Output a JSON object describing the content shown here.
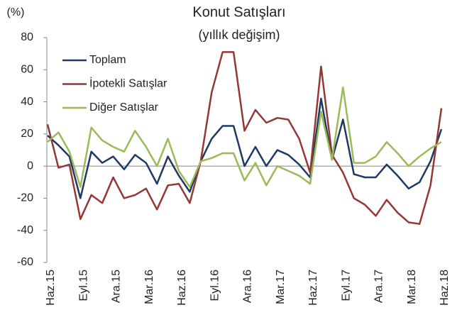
{
  "chart_data": {
    "type": "line",
    "title": "Konut Satışları",
    "subtitle": "(yıllık değişim)",
    "y_label": "(%)",
    "categories": [
      "Haz.15",
      null,
      null,
      "Eyl.15",
      null,
      null,
      "Ara.15",
      null,
      null,
      "Mar.16",
      null,
      null,
      "Haz.16",
      null,
      null,
      "Eyl.16",
      null,
      null,
      "Ara.16",
      null,
      null,
      "Mar.17",
      null,
      null,
      "Haz.17",
      null,
      null,
      "Eyl.17",
      null,
      null,
      "Ara.17",
      null,
      null,
      "Mar.18",
      null,
      null,
      "Haz.18"
    ],
    "series": [
      {
        "name": "Toplam",
        "color": "#1f3864",
        "values": [
          19,
          13,
          6,
          -20,
          9,
          2,
          6,
          -2,
          7,
          2,
          -11,
          6,
          -6,
          -16,
          3,
          17,
          25,
          25,
          0,
          12,
          0,
          10,
          7,
          1,
          -7,
          42,
          4,
          29,
          -5,
          -7,
          -7,
          1,
          -6,
          -14,
          -10,
          3,
          23
        ]
      },
      {
        "name": "İpotekli Satışlar",
        "color": "#953735",
        "values": [
          26,
          -1,
          1,
          -33,
          -18,
          -23,
          -7,
          -20,
          -18,
          -14,
          -27,
          -12,
          -11,
          -23,
          3,
          46,
          71,
          71,
          22,
          35,
          27,
          30,
          29,
          17,
          -4,
          62,
          7,
          -4,
          -20,
          -24,
          -31,
          -21,
          -29,
          -35,
          -36,
          -12,
          36
        ]
      },
      {
        "name": "Diğer Satışlar",
        "color": "#9bbb59",
        "values": [
          15,
          21,
          9,
          -13,
          24,
          16,
          12,
          9,
          22,
          12,
          0,
          17,
          -3,
          -13,
          3,
          5,
          8,
          8,
          -9,
          2,
          -12,
          0,
          -3,
          -6,
          -11,
          34,
          4,
          49,
          2,
          2,
          6,
          15,
          8,
          0,
          6,
          11,
          15
        ]
      }
    ],
    "ylim": [
      -60,
      80
    ],
    "yticks": [
      -60,
      -40,
      -20,
      0,
      20,
      40,
      60,
      80
    ],
    "grid": false,
    "legend": "upper left"
  }
}
